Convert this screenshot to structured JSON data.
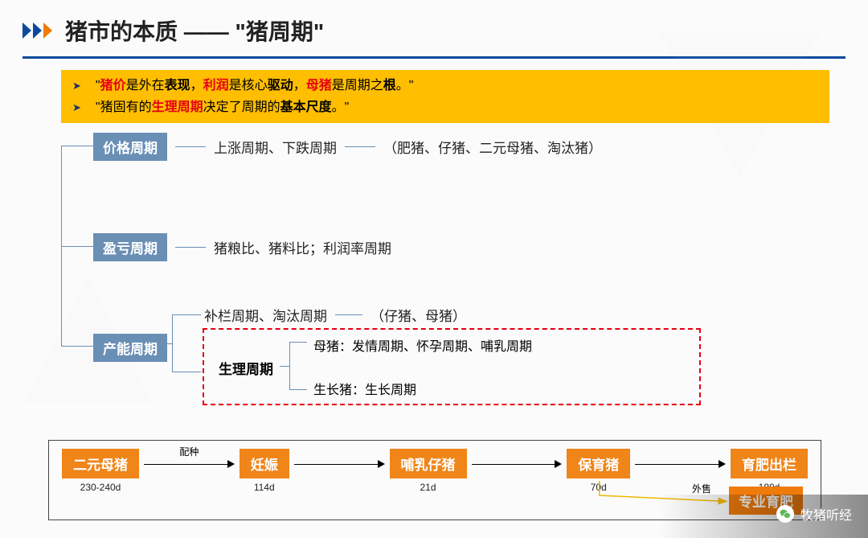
{
  "colors": {
    "accent_blue": "#0a4a9e",
    "chevron_orange": "#ef7b00",
    "box_blue": "#6a8fb5",
    "highlight_yellow": "#ffbe00",
    "danger_red": "#e60012",
    "stage_orange": "#f08519",
    "stage_orange_dark": "#ef7b0b"
  },
  "header": {
    "title": "猪市的本质 —— \"猪周期\""
  },
  "callout": {
    "line1": {
      "q1": "\"",
      "a": "猪价",
      "b": "是外在",
      "c": "表现",
      "d": "，",
      "e": "利润",
      "f": "是核心",
      "g": "驱动",
      "h": "，",
      "i": "母猪",
      "j": "是周期之",
      "k": "根",
      "l": "。\""
    },
    "line2": {
      "q1": "\"猪固有的",
      "a": "生理周期",
      "b": "决定了周期的",
      "c": "基本尺度",
      "d": "。\""
    }
  },
  "cycles": {
    "price": {
      "label": "价格周期",
      "detail": "上涨周期、下跌周期",
      "note": "（肥猪、仔猪、二元母猪、淘汰猪）"
    },
    "profit": {
      "label": "盈亏周期",
      "detail": "猪粮比、猪料比；利润率周期"
    },
    "capacity": {
      "label": "产能周期",
      "top_detail": "补栏周期、淘汰周期",
      "top_note": "（仔猪、母猪）",
      "phys": {
        "label": "生理周期",
        "sow": "母猪：发情周期、怀孕周期、哺乳周期",
        "grow": "生长猪：生长周期"
      }
    }
  },
  "lifecycle": {
    "stages": [
      {
        "name": "二元母猪",
        "duration": "230-240d",
        "color": "#f08519"
      },
      {
        "name": "妊娠",
        "duration": "114d",
        "color": "#f08519"
      },
      {
        "name": "哺乳仔猪",
        "duration": "21d",
        "color": "#f08519"
      },
      {
        "name": "保育猪",
        "duration": "70d",
        "color": "#f08519"
      },
      {
        "name": "育肥出栏",
        "duration": "180d",
        "color": "#f08519"
      }
    ],
    "edges": [
      {
        "label": "配种"
      },
      {
        "label": ""
      },
      {
        "label": ""
      },
      {
        "label": ""
      }
    ],
    "branch": {
      "label": "专业育肥",
      "edge_label": "外售",
      "color": "#ef7b0b"
    }
  },
  "watermark": {
    "text": "牧猪听经"
  }
}
